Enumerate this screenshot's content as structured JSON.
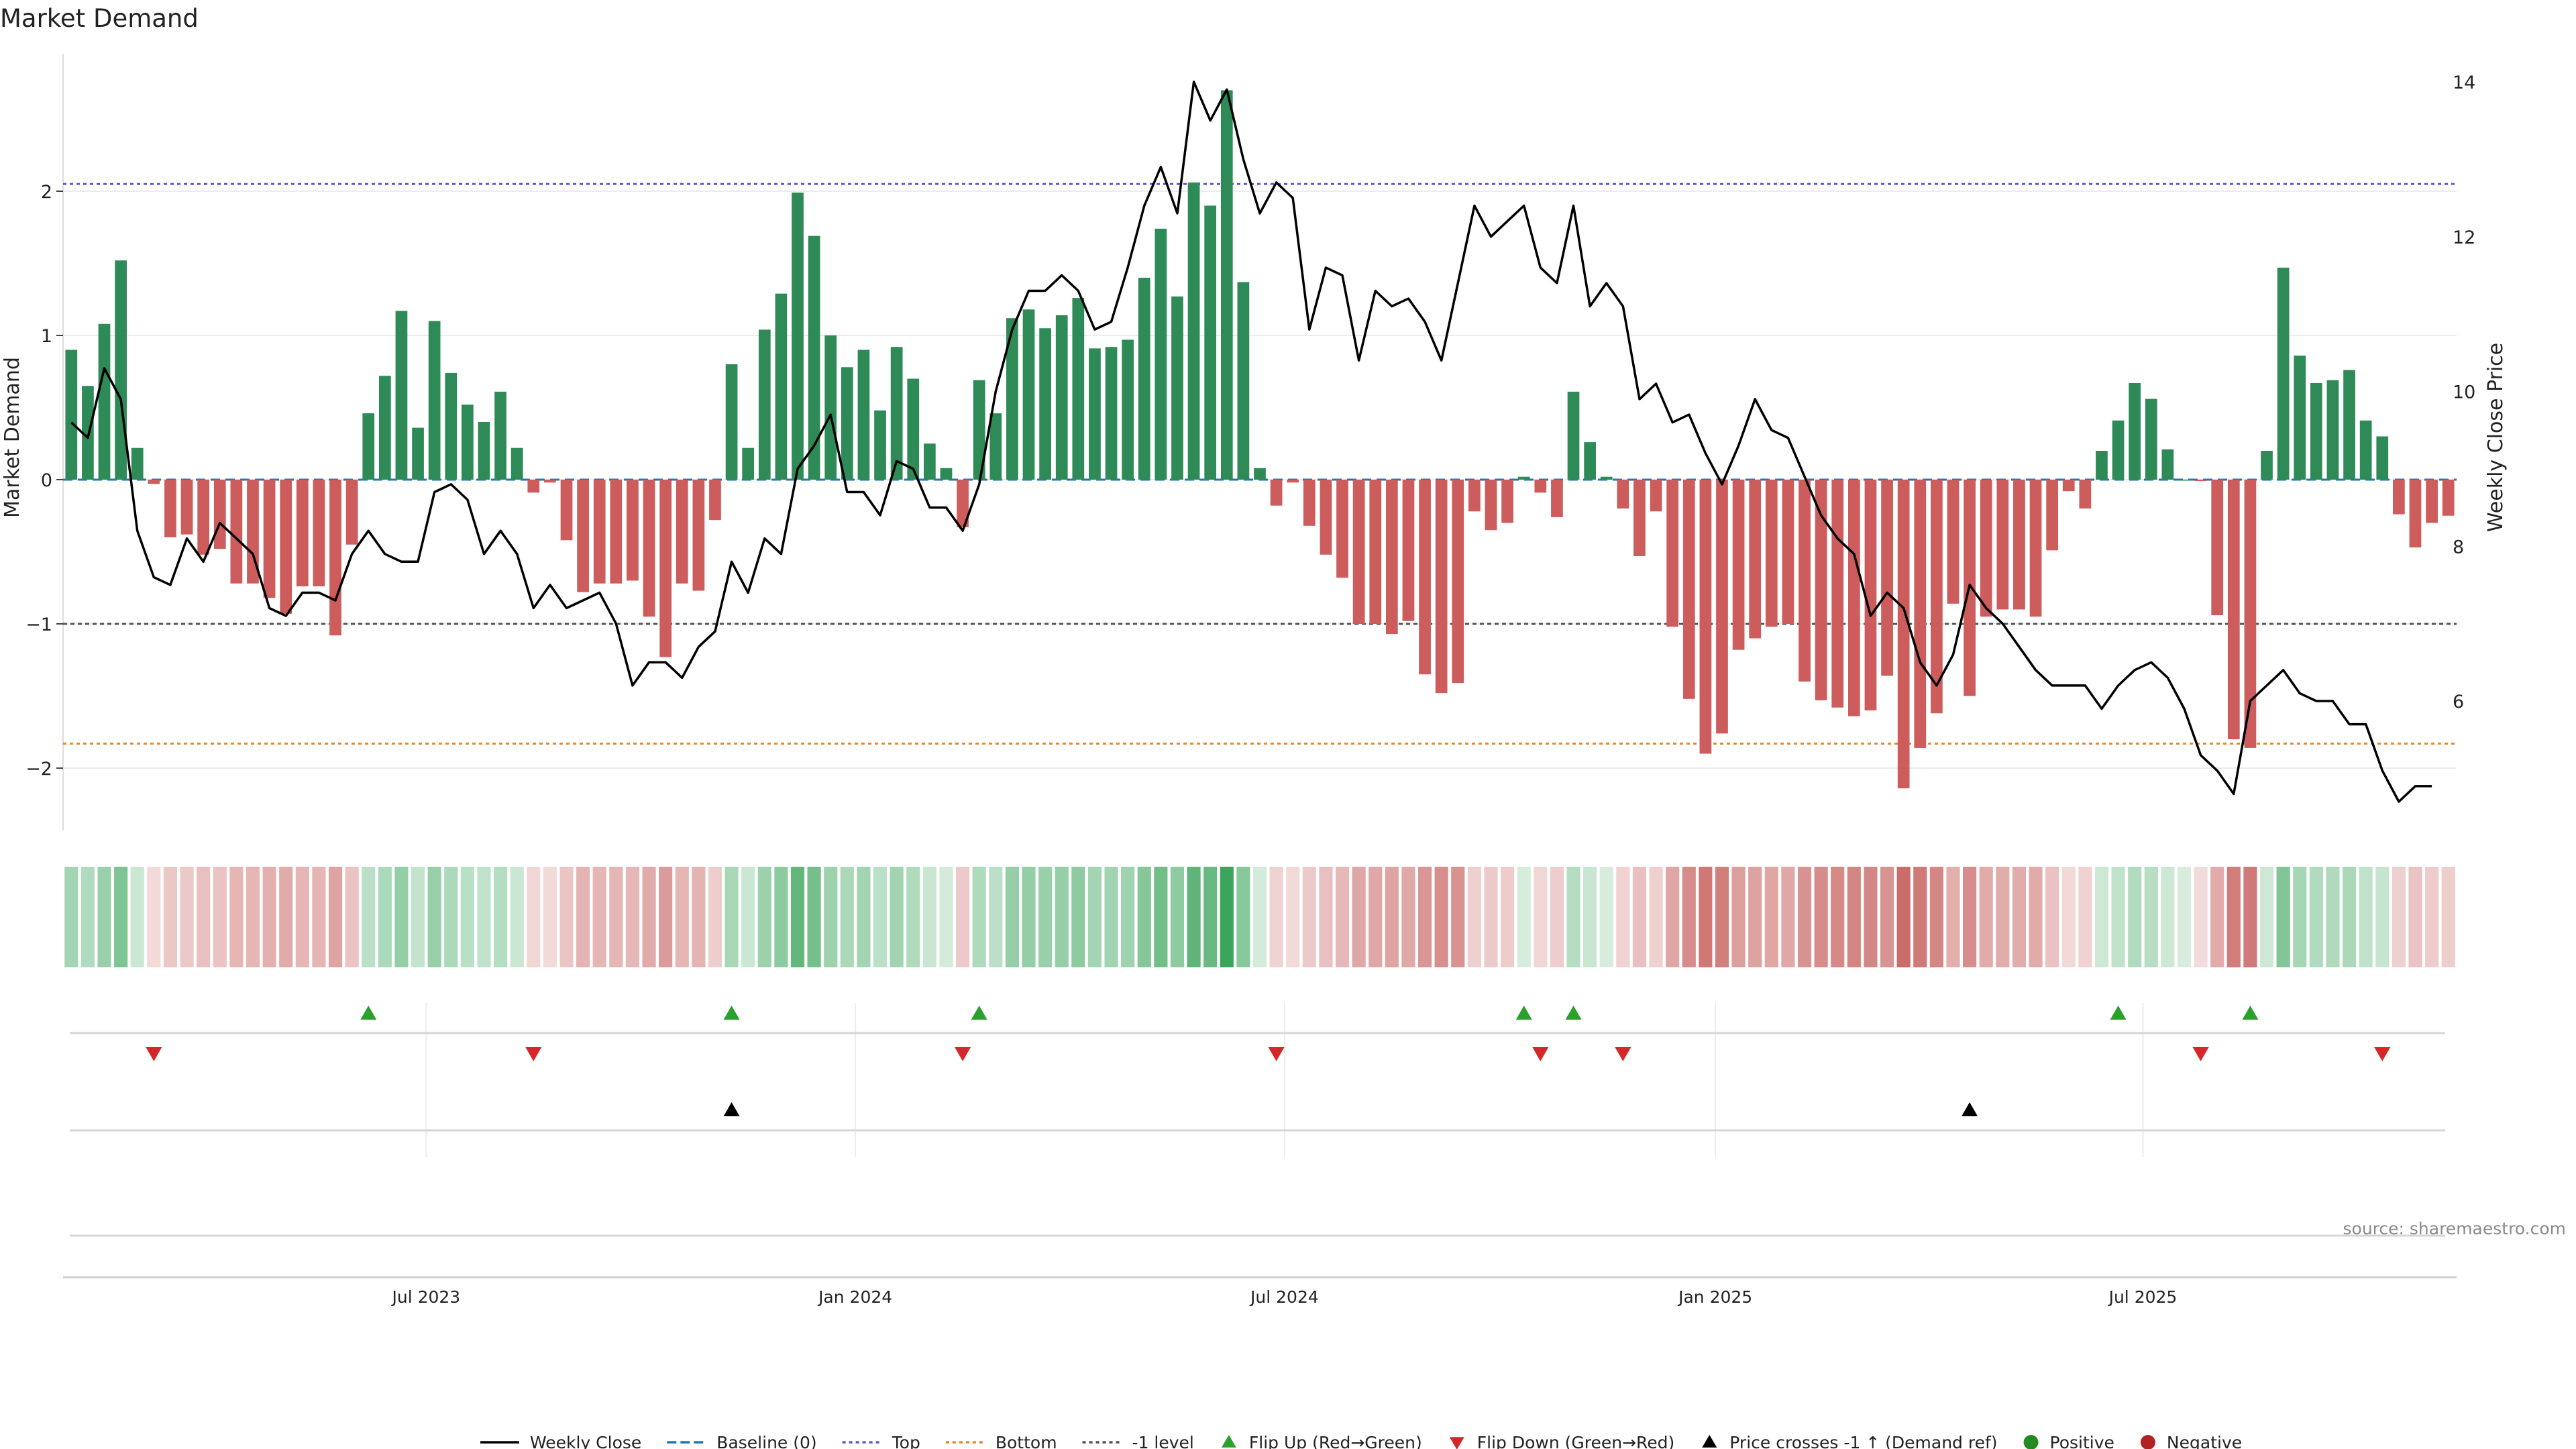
{
  "chart_data": {
    "type": "bar+line",
    "title": "Market Demand",
    "ylabel_left": "Market Demand",
    "ylabel_right": "Weekly Close Price",
    "ylim_left": [
      -2.4,
      2.85
    ],
    "ylim_right": [
      4.2,
      14.2
    ],
    "yticks_left": [
      {
        "v": 2,
        "label": "2"
      },
      {
        "v": 1,
        "label": "1"
      },
      {
        "v": 0,
        "label": "0"
      },
      {
        "v": -1,
        "label": "−1"
      },
      {
        "v": -2,
        "label": "−2"
      }
    ],
    "yticks_right": [
      {
        "v": 14,
        "label": "14"
      },
      {
        "v": 12,
        "label": "12"
      },
      {
        "v": 10,
        "label": "10"
      },
      {
        "v": 8,
        "label": "8"
      },
      {
        "v": 6,
        "label": "6"
      }
    ],
    "date_ticks": [
      {
        "week": 21.5,
        "label": "Jul 2023"
      },
      {
        "week": 47.5,
        "label": "Jan 2024"
      },
      {
        "week": 73.5,
        "label": "Jul 2024"
      },
      {
        "week": 99.6,
        "label": "Jan 2025"
      },
      {
        "week": 125.5,
        "label": "Jul 2025"
      }
    ],
    "reference_lines": {
      "top": 2.05,
      "bottom": -1.83,
      "minus_one": -1,
      "baseline": 0
    },
    "demand": [
      0.9,
      0.65,
      1.08,
      1.52,
      0.22,
      -0.03,
      -0.4,
      -0.38,
      -0.52,
      -0.48,
      -0.72,
      -0.72,
      -0.82,
      -0.93,
      -0.74,
      -0.74,
      -1.08,
      -0.45,
      0.46,
      0.72,
      1.17,
      0.36,
      1.1,
      0.74,
      0.52,
      0.4,
      0.61,
      0.22,
      -0.09,
      -0.02,
      -0.42,
      -0.78,
      -0.72,
      -0.72,
      -0.7,
      -0.95,
      -1.23,
      -0.72,
      -0.77,
      -0.28,
      0.8,
      0.22,
      1.04,
      1.29,
      1.99,
      1.69,
      1.0,
      0.78,
      0.9,
      0.48,
      0.92,
      0.7,
      0.25,
      0.08,
      -0.33,
      0.69,
      0.46,
      1.12,
      1.18,
      1.05,
      1.14,
      1.26,
      0.91,
      0.92,
      0.97,
      1.4,
      1.74,
      1.27,
      2.06,
      1.9,
      2.7,
      1.37,
      0.08,
      -0.18,
      -0.02,
      -0.32,
      -0.52,
      -0.68,
      -1.0,
      -1.0,
      -1.07,
      -0.98,
      -1.35,
      -1.48,
      -1.41,
      -0.22,
      -0.35,
      -0.3,
      0.02,
      -0.09,
      -0.26,
      0.61,
      0.26,
      0.02,
      -0.2,
      -0.53,
      -0.22,
      -1.02,
      -1.52,
      -1.9,
      -1.76,
      -1.18,
      -1.1,
      -1.02,
      -1.0,
      -1.4,
      -1.53,
      -1.58,
      -1.64,
      -1.6,
      -1.36,
      -2.14,
      -1.86,
      -1.62,
      -0.86,
      -1.5,
      -0.95,
      -0.9,
      -0.9,
      -0.95,
      -0.49,
      -0.08,
      -0.2,
      0.2,
      0.41,
      0.67,
      0.56,
      0.21,
      0.0,
      -0.01,
      -0.94,
      -1.8,
      -1.86,
      0.2,
      1.47,
      0.86,
      0.67,
      0.69,
      0.76,
      0.41,
      0.3,
      -0.24,
      -0.47,
      -0.3,
      -0.25
    ],
    "close": [
      9.6,
      9.4,
      10.3,
      9.9,
      8.2,
      7.6,
      7.5,
      8.1,
      7.8,
      8.3,
      8.1,
      7.9,
      7.2,
      7.1,
      7.4,
      7.4,
      7.3,
      7.9,
      8.2,
      7.9,
      7.8,
      7.8,
      8.7,
      8.8,
      8.6,
      7.9,
      8.2,
      7.9,
      7.2,
      7.5,
      7.2,
      7.3,
      7.4,
      7.0,
      6.2,
      6.5,
      6.5,
      6.3,
      6.7,
      6.9,
      7.8,
      7.4,
      8.1,
      7.9,
      9.0,
      9.3,
      9.7,
      8.7,
      8.7,
      8.4,
      9.1,
      9.0,
      8.5,
      8.5,
      8.2,
      8.8,
      10.0,
      10.8,
      11.3,
      11.3,
      11.5,
      11.3,
      10.8,
      10.9,
      11.6,
      12.4,
      12.9,
      12.3,
      14.0,
      13.5,
      13.9,
      13.0,
      12.3,
      12.7,
      12.5,
      10.8,
      11.6,
      11.5,
      10.4,
      11.3,
      11.1,
      11.2,
      10.9,
      10.4,
      11.4,
      12.4,
      12.0,
      12.2,
      12.4,
      11.6,
      11.4,
      12.4,
      11.1,
      11.4,
      11.1,
      9.9,
      10.1,
      9.6,
      9.7,
      9.2,
      8.8,
      9.3,
      9.9,
      9.5,
      9.4,
      8.9,
      8.4,
      8.1,
      7.9,
      7.1,
      7.4,
      7.2,
      6.5,
      6.2,
      6.6,
      7.5,
      7.2,
      7.0,
      6.7,
      6.4,
      6.2,
      6.2,
      6.2,
      5.9,
      6.2,
      6.4,
      6.5,
      6.3,
      5.9,
      5.3,
      5.1,
      4.8,
      6.0,
      6.2,
      6.4,
      6.1,
      6.0,
      6.0,
      5.7,
      5.7,
      5.1,
      4.7,
      4.9,
      4.9
    ],
    "flip_up_weeks": [
      18,
      40,
      55,
      88,
      91,
      124,
      132
    ],
    "flip_down_weeks": [
      5,
      28,
      54,
      73,
      89,
      94,
      129,
      140
    ],
    "price_cross_weeks": [
      40,
      115
    ],
    "source": "source: sharemaestro.com",
    "legend": [
      {
        "label": "Weekly Close",
        "kind": "line-solid",
        "color": "#000000"
      },
      {
        "label": "Baseline (0)",
        "kind": "line-dash",
        "color": "#1f77b4"
      },
      {
        "label": "Top",
        "kind": "line-dot",
        "color": "#5b5bd6"
      },
      {
        "label": "Bottom",
        "kind": "line-dot",
        "color": "#e8872a"
      },
      {
        "label": "-1 level",
        "kind": "line-dot",
        "color": "#555555"
      },
      {
        "label": "Flip Up (Red→Green)",
        "kind": "tri-up",
        "color": "#2ca02c"
      },
      {
        "label": "Flip Down (Green→Red)",
        "kind": "tri-down",
        "color": "#d62728"
      },
      {
        "label": "Price crosses -1 ↑ (Demand ref)",
        "kind": "tri-up",
        "color": "#000000"
      },
      {
        "label": "Positive",
        "kind": "dot",
        "color": "#228b22"
      },
      {
        "label": "Negative",
        "kind": "dot",
        "color": "#b22222"
      }
    ]
  },
  "colors": {
    "positive_bar": "#2e8b57",
    "negative_bar": "#cd5c5c",
    "heat_positive": "#3ca55c",
    "heat_negative": "#c0504d",
    "flip_up": "#2ca02c",
    "flip_down": "#d62728",
    "price_cross": "#000000"
  }
}
